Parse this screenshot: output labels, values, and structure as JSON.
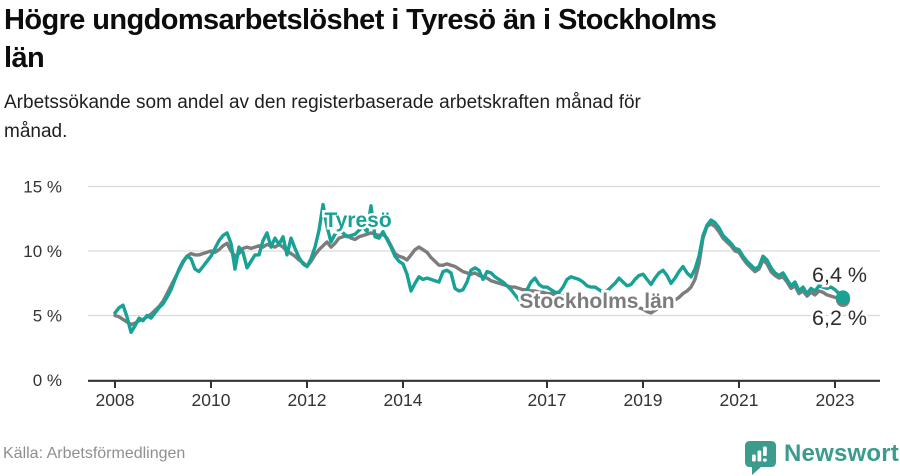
{
  "header": {
    "title_lines": [
      "Högre ungdomsarbetslöshet i Tyresö än i Stockholms",
      "län"
    ],
    "subtitle_lines": [
      "Arbetssökande som andel av den registerbaserade arbetskraften månad för",
      "månad."
    ]
  },
  "footer": {
    "source": "Källa: Arbetsförmedlingen",
    "logo_text": "Newsworthy",
    "logo_icon": "newsworthy-speech-bubble-bar-chart-icon",
    "logo_color": "#3b9b8d"
  },
  "chart_data": {
    "type": "line",
    "title": "Högre ungdomsarbetslöshet i Tyresö än i Stockholms län",
    "subtitle": "Arbetssökande som andel av den registerbaserade arbetskraften månad för månad.",
    "unit": "%",
    "x_start": "2008-01",
    "x_end": "2023-03",
    "points_per_year": 12,
    "x_tick_labels": [
      "2008",
      "2010",
      "2012",
      "2014",
      "2017",
      "2019",
      "2021",
      "2023"
    ],
    "x_tick_values": [
      2008,
      2010,
      2012,
      2014,
      2017,
      2019,
      2021,
      2023
    ],
    "y_tick_labels": [
      "0 %",
      "5 %",
      "10 %",
      "15 %"
    ],
    "y_tick_values": [
      0,
      5,
      10,
      15
    ],
    "ylim": [
      0,
      15.5
    ],
    "grid": "horizontal-only",
    "legend": "inline-series-labels",
    "colors": {
      "grid": "#d9d9d9",
      "axis": "#333333",
      "tick_text": "#333333",
      "end_label_text": "#2e2e2e",
      "background": "#ffffff"
    },
    "series": [
      {
        "name": "Stockholms län",
        "color": "#7c7c7c",
        "values": [
          5.0,
          4.9,
          4.7,
          4.5,
          4.3,
          4.4,
          4.6,
          4.7,
          4.9,
          5.1,
          5.4,
          5.7,
          6.1,
          6.7,
          7.3,
          7.9,
          8.5,
          9.1,
          9.6,
          9.8,
          9.7,
          9.7,
          9.8,
          9.9,
          10.0,
          9.9,
          10.1,
          10.4,
          10.6,
          10.0,
          9.6,
          9.8,
          10.2,
          10.3,
          10.2,
          10.3,
          10.4,
          10.3,
          10.5,
          10.4,
          10.3,
          10.5,
          10.3,
          10.0,
          9.8,
          9.6,
          9.3,
          9.1,
          8.8,
          9.2,
          9.7,
          10.1,
          10.4,
          10.7,
          10.3,
          10.6,
          11.0,
          11.1,
          11.2,
          11.0,
          10.9,
          11.1,
          11.2,
          11.3,
          11.4,
          11.3,
          11.2,
          11.3,
          11.0,
          10.4,
          9.8,
          9.6,
          9.5,
          9.3,
          9.7,
          10.1,
          10.3,
          10.1,
          9.9,
          9.5,
          9.2,
          8.9,
          8.9,
          9.0,
          8.9,
          8.8,
          8.6,
          8.4,
          8.3,
          8.2,
          8.3,
          8.1,
          8.0,
          7.9,
          7.7,
          7.6,
          7.5,
          7.4,
          7.3,
          7.2,
          7.2,
          7.1,
          7.0,
          7.0,
          6.9,
          6.9,
          6.8,
          6.8,
          6.7,
          6.7,
          6.6,
          6.6,
          6.5,
          6.5,
          6.4,
          6.4,
          6.4,
          6.3,
          6.3,
          6.3,
          6.2,
          6.2,
          6.1,
          6.1,
          6.0,
          6.0,
          5.9,
          5.9,
          5.8,
          5.8,
          5.7,
          5.6,
          5.5,
          5.3,
          5.2,
          5.4,
          5.6,
          5.9,
          6.0,
          6.1,
          6.2,
          6.4,
          6.7,
          6.9,
          7.2,
          7.8,
          9.0,
          11.0,
          11.9,
          12.1,
          11.9,
          11.5,
          11.0,
          10.7,
          10.4,
          10.0,
          9.9,
          9.4,
          9.0,
          8.7,
          8.4,
          8.6,
          9.3,
          9.0,
          8.4,
          8.1,
          7.9,
          8.0,
          7.6,
          7.1,
          7.3,
          6.7,
          6.9,
          6.5,
          6.8,
          6.6,
          6.9,
          6.8,
          6.6,
          6.5,
          6.4,
          6.3,
          6.2
        ]
      },
      {
        "name": "Tyresö",
        "color": "#17a295",
        "values": [
          5.2,
          5.6,
          5.8,
          4.9,
          3.7,
          4.2,
          4.8,
          4.6,
          5.0,
          4.8,
          5.2,
          5.6,
          5.9,
          6.4,
          7.0,
          7.8,
          8.6,
          9.2,
          9.6,
          9.4,
          8.6,
          8.4,
          8.8,
          9.2,
          9.6,
          10.2,
          10.8,
          11.2,
          11.4,
          10.6,
          8.6,
          10.3,
          9.9,
          8.7,
          9.2,
          9.7,
          9.7,
          10.8,
          11.4,
          10.3,
          11.0,
          10.5,
          11.1,
          9.7,
          11.0,
          10.2,
          9.5,
          9.0,
          8.8,
          9.4,
          10.3,
          11.6,
          13.6,
          11.9,
          10.7,
          11.3,
          11.6,
          11.4,
          11.1,
          11.2,
          11.3,
          11.6,
          11.9,
          11.5,
          13.5,
          11.1,
          11.0,
          11.5,
          10.9,
          10.3,
          9.6,
          9.2,
          9.0,
          8.2,
          6.9,
          7.5,
          8.0,
          7.8,
          7.9,
          7.8,
          7.7,
          7.6,
          8.4,
          8.5,
          8.3,
          7.1,
          6.9,
          7.0,
          7.6,
          8.5,
          8.7,
          8.5,
          7.8,
          8.4,
          8.3,
          8.0,
          7.8,
          7.6,
          7.3,
          7.0,
          6.6,
          6.2,
          6.1,
          7.0,
          7.6,
          7.9,
          7.4,
          7.2,
          7.2,
          7.0,
          6.8,
          6.8,
          7.2,
          7.8,
          8.0,
          7.9,
          7.8,
          7.6,
          7.3,
          7.2,
          7.2,
          7.0,
          6.8,
          6.9,
          7.2,
          7.5,
          7.9,
          7.6,
          7.3,
          7.4,
          7.8,
          8.1,
          8.2,
          7.8,
          7.4,
          7.9,
          8.3,
          8.5,
          8.1,
          7.5,
          7.9,
          8.4,
          8.8,
          8.3,
          8.0,
          8.6,
          9.6,
          11.2,
          12.0,
          12.4,
          12.2,
          11.8,
          11.2,
          10.9,
          10.6,
          10.2,
          10.1,
          9.6,
          9.2,
          8.9,
          8.6,
          8.8,
          9.6,
          9.3,
          8.7,
          8.3,
          8.1,
          8.3,
          7.8,
          7.3,
          7.6,
          6.9,
          7.2,
          6.7,
          7.1,
          6.9,
          7.3,
          7.2,
          7.1,
          7.2,
          7.0,
          6.7,
          6.4
        ]
      }
    ],
    "end_labels": [
      {
        "text": "6,4 %",
        "series": "Tyresö",
        "value": 6.4
      },
      {
        "text": "6,2 %",
        "series": "Stockholms län",
        "value": 6.2
      }
    ]
  }
}
